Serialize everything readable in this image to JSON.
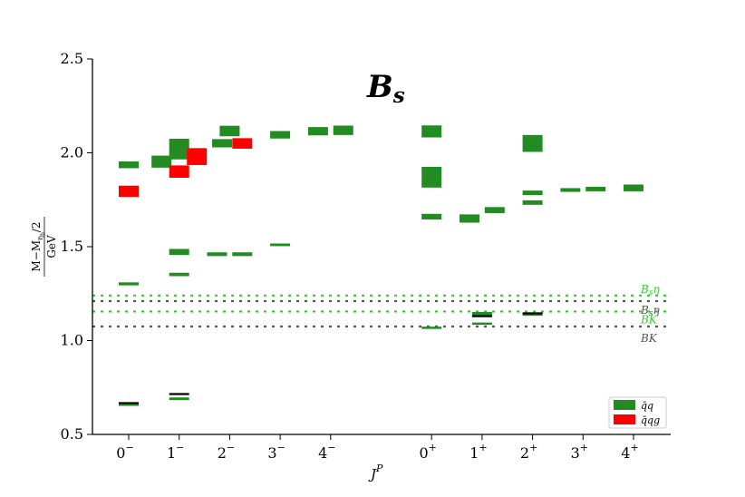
{
  "chart_data": {
    "type": "spectrum",
    "title": "B_s",
    "xlabel": "J^P",
    "ylabel": "M − M_ηb/2 / GeV",
    "ylim": [
      0.5,
      2.5
    ],
    "yticks": [
      "0.5",
      "1.0",
      "1.5",
      "2.0",
      "2.5"
    ],
    "categories": [
      {
        "id": "0-",
        "base": "0",
        "sup": "−",
        "x": 0
      },
      {
        "id": "1-",
        "base": "1",
        "sup": "−",
        "x": 1
      },
      {
        "id": "2-",
        "base": "2",
        "sup": "−",
        "x": 2
      },
      {
        "id": "3-",
        "base": "3",
        "sup": "−",
        "x": 3
      },
      {
        "id": "4-",
        "base": "4",
        "sup": "−",
        "x": 4
      },
      {
        "id": "0+",
        "base": "0",
        "sup": "+",
        "x": 6
      },
      {
        "id": "1+",
        "base": "1",
        "sup": "+",
        "x": 7
      },
      {
        "id": "2+",
        "base": "2",
        "sup": "+",
        "x": 8
      },
      {
        "id": "3+",
        "base": "3",
        "sup": "+",
        "x": 9
      },
      {
        "id": "4+",
        "base": "4",
        "sup": "+",
        "x": 10
      }
    ],
    "series": [
      {
        "name": "q̄q",
        "color": "#228B22",
        "states": [
          {
            "x": 0,
            "dx": 0,
            "mass": 1.936,
            "err": 0.018
          },
          {
            "x": 0,
            "dx": 0,
            "mass": 1.302,
            "err": 0.008
          },
          {
            "x": 0,
            "dx": 0,
            "mass": 0.659,
            "err": 0.007
          },
          {
            "x": 1,
            "dx": -0.35,
            "mass": 1.953,
            "err": 0.032
          },
          {
            "x": 1,
            "dx": 0,
            "mass": 2.02,
            "err": 0.055
          },
          {
            "x": 1,
            "dx": 0,
            "mass": 1.472,
            "err": 0.016
          },
          {
            "x": 1,
            "dx": 0,
            "mass": 1.352,
            "err": 0.009
          },
          {
            "x": 1,
            "dx": 0,
            "mass": 0.69,
            "err": 0.007
          },
          {
            "x": 2,
            "dx": -0.15,
            "mass": 2.051,
            "err": 0.022
          },
          {
            "x": 2,
            "dx": 0,
            "mass": 2.116,
            "err": 0.028
          },
          {
            "x": 2,
            "dx": -0.25,
            "mass": 1.46,
            "err": 0.01
          },
          {
            "x": 2,
            "dx": 0.25,
            "mass": 1.46,
            "err": 0.01
          },
          {
            "x": 3,
            "dx": 0,
            "mass": 2.096,
            "err": 0.02
          },
          {
            "x": 3,
            "dx": 0,
            "mass": 1.51,
            "err": 0.007
          },
          {
            "x": 4,
            "dx": -0.25,
            "mass": 2.115,
            "err": 0.022
          },
          {
            "x": 4,
            "dx": 0.25,
            "mass": 2.12,
            "err": 0.025
          },
          {
            "x": 6,
            "dx": 0,
            "mass": 2.114,
            "err": 0.032
          },
          {
            "x": 6,
            "dx": 0,
            "mass": 1.87,
            "err": 0.055
          },
          {
            "x": 6,
            "dx": 0,
            "mass": 1.66,
            "err": 0.015
          },
          {
            "x": 6,
            "dx": 0,
            "mass": 1.068,
            "err": 0.006
          },
          {
            "x": 7,
            "dx": -0.25,
            "mass": 1.65,
            "err": 0.022
          },
          {
            "x": 7,
            "dx": 0.25,
            "mass": 1.695,
            "err": 0.016
          },
          {
            "x": 7,
            "dx": 0,
            "mass": 1.14,
            "err": 0.012
          },
          {
            "x": 7,
            "dx": 0,
            "mass": 1.09,
            "err": 0.006
          },
          {
            "x": 8,
            "dx": 0,
            "mass": 2.05,
            "err": 0.045
          },
          {
            "x": 8,
            "dx": 0,
            "mass": 1.787,
            "err": 0.012
          },
          {
            "x": 8,
            "dx": 0,
            "mass": 1.735,
            "err": 0.012
          },
          {
            "x": 8,
            "dx": 0,
            "mass": 1.14,
            "err": 0.008
          },
          {
            "x": 9,
            "dx": -0.25,
            "mass": 1.802,
            "err": 0.01
          },
          {
            "x": 9,
            "dx": 0.25,
            "mass": 1.807,
            "err": 0.012
          },
          {
            "x": 10,
            "dx": 0,
            "mass": 1.813,
            "err": 0.018
          }
        ]
      },
      {
        "name": "q̄qg",
        "color": "#FF0000",
        "states": [
          {
            "x": 0,
            "dx": 0,
            "mass": 1.795,
            "err": 0.03
          },
          {
            "x": 1,
            "dx": 0,
            "mass": 1.9,
            "err": 0.033
          },
          {
            "x": 1,
            "dx": 0.35,
            "mass": 1.98,
            "err": 0.045
          },
          {
            "x": 2,
            "dx": 0.25,
            "mass": 2.05,
            "err": 0.028
          }
        ]
      }
    ],
    "experimental": {
      "color": "#000000",
      "states": [
        {
          "x": 0,
          "mass": 0.667
        },
        {
          "x": 1,
          "mass": 0.715
        },
        {
          "x": 7,
          "mass": 1.13
        },
        {
          "x": 8,
          "mass": 1.145
        }
      ]
    },
    "thresholds": [
      {
        "label": "B_sη",
        "mass": 1.24,
        "color": "#33cc33"
      },
      {
        "label": "B_sη",
        "mass": 1.21,
        "color": "#555555"
      },
      {
        "label": "BK",
        "mass": 1.155,
        "color": "#33cc33"
      },
      {
        "label": "BK",
        "mass": 1.075,
        "color": "#555555"
      }
    ],
    "legend": {
      "placement": "bottom-right"
    }
  }
}
